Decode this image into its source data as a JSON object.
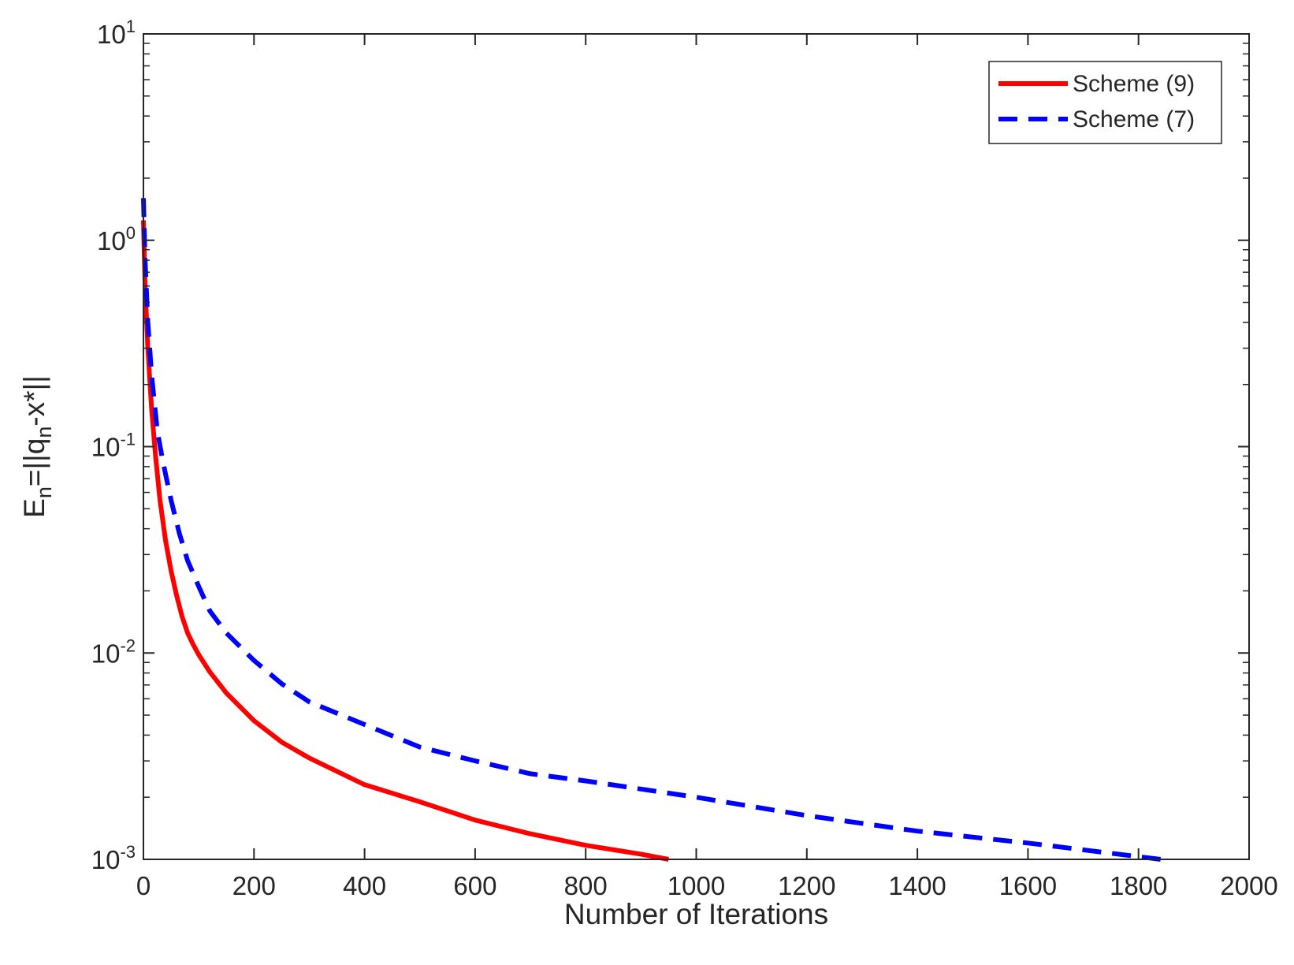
{
  "chart_data": {
    "type": "line",
    "xlabel": "Number of Iterations",
    "ylabel": {
      "base": "E",
      "base_sub": "n",
      "mid": "=||q",
      "mid_sub": "n",
      "tail": "-x*||"
    },
    "xlim": [
      0,
      2000
    ],
    "ylim": [
      0.001,
      10
    ],
    "yscale": "log",
    "grid": false,
    "legend_position": "top-right",
    "x_ticks": [
      "0",
      "200",
      "400",
      "600",
      "800",
      "1000",
      "1200",
      "1400",
      "1600",
      "1800",
      "2000"
    ],
    "x_tick_values": [
      0,
      200,
      400,
      600,
      800,
      1000,
      1200,
      1400,
      1600,
      1800,
      2000
    ],
    "y_ticks": [
      {
        "base": "10",
        "exp": "-3",
        "value": 0.001
      },
      {
        "base": "10",
        "exp": "-2",
        "value": 0.01
      },
      {
        "base": "10",
        "exp": "-1",
        "value": 0.1
      },
      {
        "base": "10",
        "exp": "0",
        "value": 1
      },
      {
        "base": "10",
        "exp": "1",
        "value": 10
      }
    ],
    "series": [
      {
        "name": "Scheme (9)",
        "color": "#ff0000",
        "style": "solid",
        "x": [
          0,
          3,
          8,
          15,
          22,
          30,
          40,
          50,
          60,
          70,
          80,
          90,
          100,
          120,
          150,
          200,
          250,
          300,
          400,
          500,
          600,
          700,
          800,
          900,
          950
        ],
        "y": [
          1.25,
          0.6,
          0.3,
          0.15,
          0.09,
          0.055,
          0.035,
          0.025,
          0.019,
          0.015,
          0.0125,
          0.011,
          0.0098,
          0.0081,
          0.0064,
          0.0047,
          0.0037,
          0.0031,
          0.0023,
          0.0019,
          0.00155,
          0.00133,
          0.00117,
          0.00106,
          0.001
        ]
      },
      {
        "name": "Scheme (7)",
        "color": "#0000ff",
        "style": "dashed",
        "x": [
          0,
          3,
          8,
          15,
          25,
          35,
          50,
          65,
          80,
          100,
          120,
          150,
          200,
          250,
          300,
          400,
          500,
          600,
          700,
          800,
          1000,
          1200,
          1400,
          1600,
          1840
        ],
        "y": [
          1.6,
          0.8,
          0.4,
          0.22,
          0.12,
          0.085,
          0.055,
          0.038,
          0.028,
          0.021,
          0.016,
          0.0125,
          0.0092,
          0.0071,
          0.0058,
          0.0045,
          0.0035,
          0.003,
          0.0026,
          0.0024,
          0.002,
          0.00163,
          0.00137,
          0.0012,
          0.001
        ]
      }
    ]
  }
}
